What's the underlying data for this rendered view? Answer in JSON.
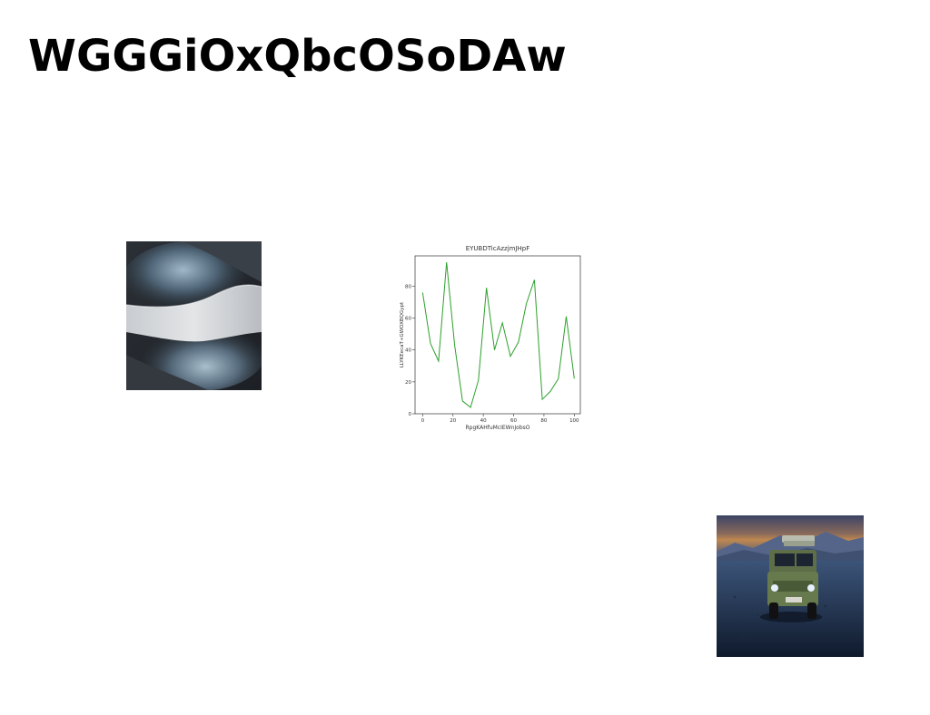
{
  "page": {
    "title": "WGGGiOxQbcOSoDAw"
  },
  "images": {
    "abstract": {
      "icon": "abstract-wave-image"
    },
    "vehicle": {
      "icon": "offroad-vehicle-image"
    }
  },
  "chart_data": {
    "type": "line",
    "title": "EYUBDTicAzzjmJHpF",
    "xlabel": "RpgKAHfuMcIEWnJobsO",
    "ylabel": "LLYKEecaT+GWOXBQGypt",
    "xlim": [
      -5,
      104
    ],
    "ylim": [
      0,
      99
    ],
    "xticks": [
      0,
      20,
      40,
      60,
      80,
      100
    ],
    "yticks": [
      0,
      20,
      40,
      60,
      80
    ],
    "grid": false,
    "line_color": "#2ca02c",
    "series": [
      {
        "x": [
          0,
          5.2,
          10.5,
          15.8,
          21.1,
          26.3,
          31.6,
          36.8,
          42.1,
          47.4,
          52.6,
          57.9,
          63.2,
          68.4,
          73.7,
          78.9,
          84.2,
          89.5,
          94.7,
          100
        ],
        "y": [
          76,
          44,
          33,
          95,
          43,
          8,
          4,
          21,
          79,
          40,
          57,
          36,
          45,
          69,
          84,
          9,
          14,
          22,
          61,
          22
        ]
      }
    ]
  }
}
